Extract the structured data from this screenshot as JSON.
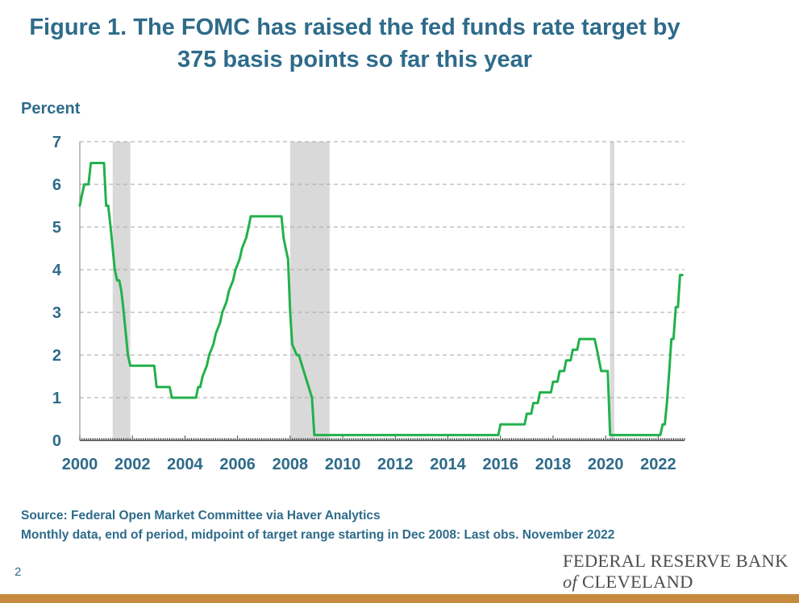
{
  "title_line1": "Figure 1. The FOMC has raised the fed funds rate target by",
  "title_line2": "375 basis points so far this year",
  "source_line": "Source: Federal Open Market Committee via Haver Analytics",
  "note_line": "Monthly data, end of period, midpoint of target range starting in Dec 2008: Last obs. November 2022",
  "page_number": "2",
  "logo": {
    "line1": "FEDERAL RESERVE BANK",
    "line2_prefix": "of",
    "line2": "CLEVELAND"
  },
  "colors": {
    "line": "#22b14c",
    "text": "#2e6b8a",
    "recession": "#d9d9d9",
    "footer_bar": "#c68a3f"
  },
  "chart_data": {
    "type": "line",
    "ylabel": "Percent",
    "ylim": [
      0,
      7
    ],
    "xlim": [
      2000,
      2023
    ],
    "yticks": [
      0,
      1,
      2,
      3,
      4,
      5,
      6,
      7
    ],
    "xticks": [
      2000,
      2002,
      2004,
      2006,
      2008,
      2010,
      2012,
      2014,
      2016,
      2018,
      2020,
      2022
    ],
    "grid": "horizontal dashed",
    "legend": "none",
    "recessions": [
      [
        2001.25,
        2001.92
      ],
      [
        2008.0,
        2009.5
      ],
      [
        2020.17,
        2020.33
      ]
    ],
    "x": [
      2000.0,
      2000.08,
      2000.17,
      2000.33,
      2000.42,
      2000.92,
      2001.0,
      2001.08,
      2001.17,
      2001.25,
      2001.33,
      2001.42,
      2001.5,
      2001.58,
      2001.67,
      2001.75,
      2001.83,
      2001.92,
      2002.83,
      2002.92,
      2003.42,
      2003.5,
      2004.42,
      2004.5,
      2004.58,
      2004.67,
      2004.83,
      2004.92,
      2005.08,
      2005.17,
      2005.33,
      2005.42,
      2005.58,
      2005.67,
      2005.83,
      2005.92,
      2006.08,
      2006.17,
      2006.33,
      2006.42,
      2006.5,
      2007.67,
      2007.75,
      2007.83,
      2007.92,
      2008.0,
      2008.08,
      2008.25,
      2008.33,
      2008.83,
      2008.92,
      2009.0,
      2015.92,
      2016.0,
      2016.92,
      2017.0,
      2017.17,
      2017.25,
      2017.42,
      2017.5,
      2017.92,
      2018.0,
      2018.17,
      2018.25,
      2018.42,
      2018.5,
      2018.67,
      2018.75,
      2018.92,
      2019.0,
      2019.58,
      2019.67,
      2019.75,
      2019.83,
      2020.08,
      2020.17,
      2020.25,
      2022.08,
      2022.17,
      2022.25,
      2022.33,
      2022.42,
      2022.5,
      2022.58,
      2022.67,
      2022.75,
      2022.83,
      2022.92
    ],
    "y": [
      5.5,
      5.75,
      6.0,
      6.0,
      6.5,
      6.5,
      5.5,
      5.5,
      5.0,
      4.5,
      4.0,
      3.75,
      3.75,
      3.5,
      3.0,
      2.5,
      2.0,
      1.75,
      1.75,
      1.25,
      1.25,
      1.0,
      1.0,
      1.25,
      1.25,
      1.5,
      1.75,
      2.0,
      2.25,
      2.5,
      2.75,
      3.0,
      3.25,
      3.5,
      3.75,
      4.0,
      4.25,
      4.5,
      4.75,
      5.0,
      5.25,
      5.25,
      4.75,
      4.5,
      4.25,
      3.0,
      2.25,
      2.0,
      2.0,
      1.0,
      0.125,
      0.125,
      0.125,
      0.375,
      0.375,
      0.625,
      0.625,
      0.875,
      0.875,
      1.125,
      1.125,
      1.375,
      1.375,
      1.625,
      1.625,
      1.875,
      1.875,
      2.125,
      2.125,
      2.375,
      2.375,
      2.125,
      1.875,
      1.625,
      1.625,
      0.125,
      0.125,
      0.125,
      0.375,
      0.375,
      0.875,
      1.625,
      2.375,
      2.375,
      3.125,
      3.125,
      3.875,
      3.875
    ]
  }
}
